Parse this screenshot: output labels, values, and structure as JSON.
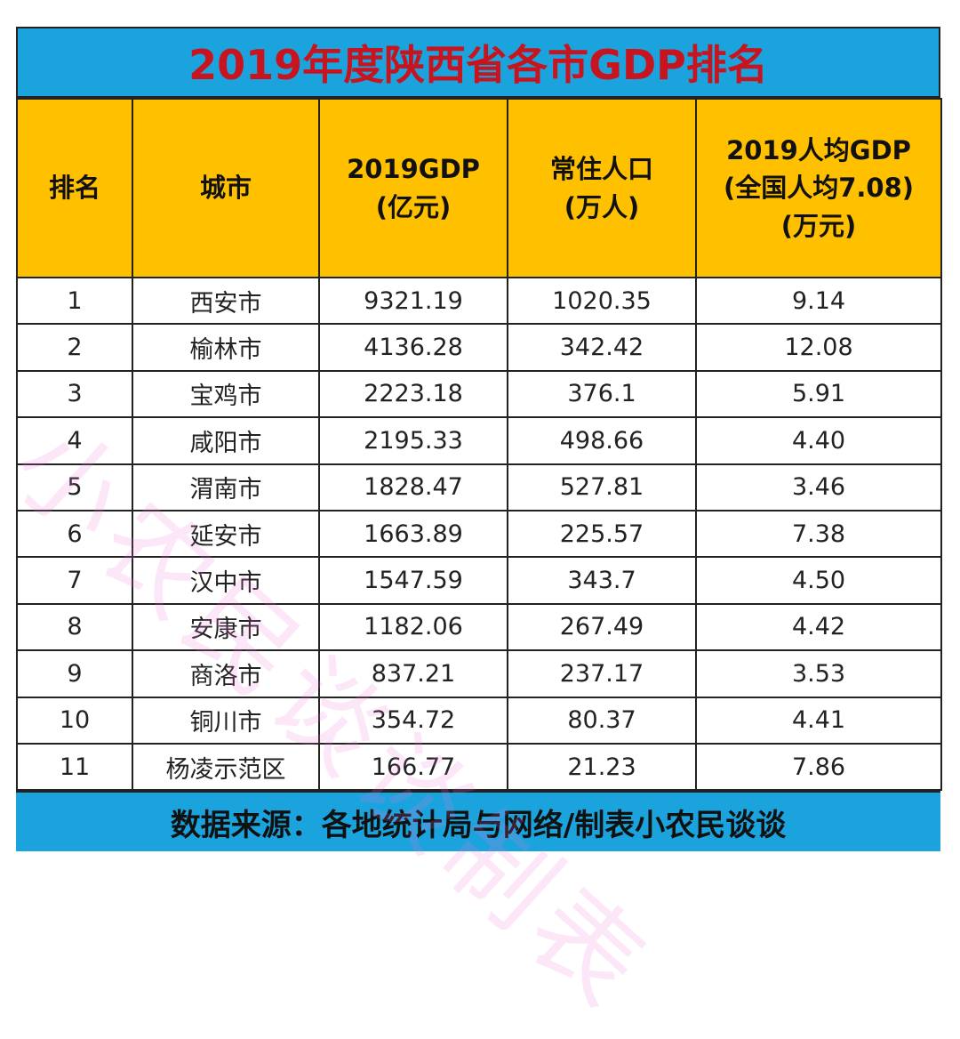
{
  "title": "2019年度陕西省各市GDP排名",
  "headers": [
    "排名",
    "城市",
    "2019GDP\n(亿元)",
    "常住人口\n(万人)",
    "2019人均GDP\n(全国人均7.08)\n(万元)"
  ],
  "rows": [
    [
      "1",
      "西安市",
      "9321.19",
      "1020.35",
      "9.14"
    ],
    [
      "2",
      "榆林市",
      "4136.28",
      "342.42",
      "12.08"
    ],
    [
      "3",
      "宝鸡市",
      "2223.18",
      "376.1",
      "5.91"
    ],
    [
      "4",
      "咸阳市",
      "2195.33",
      "498.66",
      "4.40"
    ],
    [
      "5",
      "渭南市",
      "1828.47",
      "527.81",
      "3.46"
    ],
    [
      "6",
      "延安市",
      "1663.89",
      "225.57",
      "7.38"
    ],
    [
      "7",
      "汉中市",
      "1547.59",
      "343.7",
      "4.50"
    ],
    [
      "8",
      "安康市",
      "1182.06",
      "267.49",
      "4.42"
    ],
    [
      "9",
      "商洛市",
      "837.21",
      "237.17",
      "3.53"
    ],
    [
      "10",
      "铜川市",
      "354.72",
      "80.37",
      "4.41"
    ],
    [
      "11",
      "杨凌示范区",
      "166.77",
      "21.23",
      "7.86"
    ]
  ],
  "footer": "数据来源：各地统计局与网络/制表小农民谈谈",
  "watermark": "小农民谈谈制表",
  "colors": {
    "title_bg": "#1aa3dc",
    "title_text": "#c8141e",
    "header_bg": "#ffc000"
  },
  "chart_data": {
    "type": "table",
    "title": "2019年度陕西省各市GDP排名",
    "columns": [
      "排名",
      "城市",
      "2019GDP(亿元)",
      "常住人口(万人)",
      "2019人均GDP(全国人均7.08)(万元)"
    ],
    "rows": [
      [
        1,
        "西安市",
        9321.19,
        1020.35,
        9.14
      ],
      [
        2,
        "榆林市",
        4136.28,
        342.42,
        12.08
      ],
      [
        3,
        "宝鸡市",
        2223.18,
        376.1,
        5.91
      ],
      [
        4,
        "咸阳市",
        2195.33,
        498.66,
        4.4
      ],
      [
        5,
        "渭南市",
        1828.47,
        527.81,
        3.46
      ],
      [
        6,
        "延安市",
        1663.89,
        225.57,
        7.38
      ],
      [
        7,
        "汉中市",
        1547.59,
        343.7,
        4.5
      ],
      [
        8,
        "安康市",
        1182.06,
        267.49,
        4.42
      ],
      [
        9,
        "商洛市",
        837.21,
        237.17,
        3.53
      ],
      [
        10,
        "铜川市",
        354.72,
        80.37,
        4.41
      ],
      [
        11,
        "杨凌示范区",
        166.77,
        21.23,
        7.86
      ]
    ]
  }
}
